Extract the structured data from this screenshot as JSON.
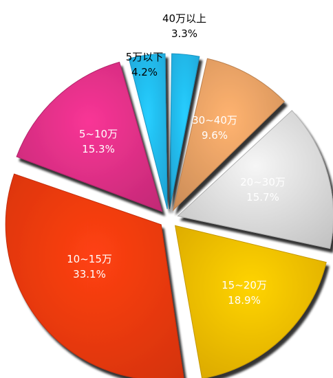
{
  "chart_data": {
    "type": "pie",
    "slices": [
      {
        "label": "40万以上",
        "percent_label": "3.3%",
        "value": 3.3,
        "color": "#22b8f0",
        "text_color": "#000000",
        "label_outside": true
      },
      {
        "label": "30~40万",
        "percent_label": "9.6%",
        "value": 9.6,
        "color": "#e8a064",
        "text_color": "#ffffff",
        "label_outside": false
      },
      {
        "label": "20~30万",
        "percent_label": "15.7%",
        "value": 15.7,
        "color": "#dcdcdc",
        "text_color": "#ffffff",
        "label_outside": false
      },
      {
        "label": "15~20万",
        "percent_label": "18.9%",
        "value": 18.9,
        "color": "#f5bd00",
        "text_color": "#ffffff",
        "label_outside": false
      },
      {
        "label": "10~15万",
        "percent_label": "33.1%",
        "value": 33.1,
        "color": "#f23a10",
        "text_color": "#ffffff",
        "label_outside": false
      },
      {
        "label": "5~10万",
        "percent_label": "15.3%",
        "value": 15.3,
        "color": "#de2f86",
        "text_color": "#ffffff",
        "label_outside": false
      },
      {
        "label": "5万以下",
        "percent_label": "4.2%",
        "value": 4.2,
        "color": "#22b8f0",
        "text_color": "#000000",
        "label_outside": true
      }
    ]
  }
}
